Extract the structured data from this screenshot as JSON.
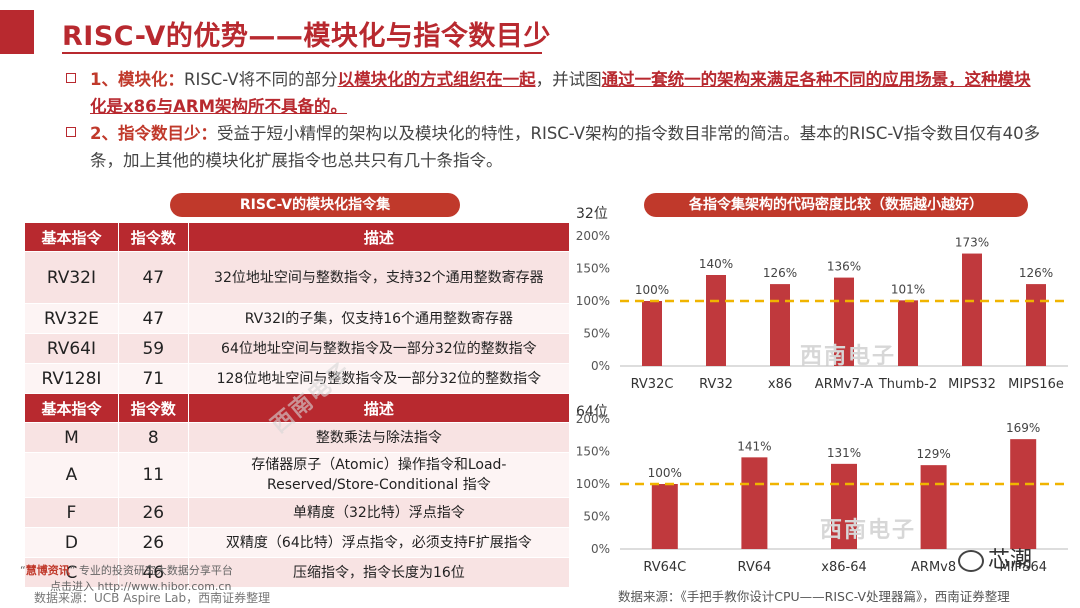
{
  "title": "RISC-V的优势——模块化与指令数目少",
  "bullets": [
    {
      "lead": "1、模块化：",
      "parts": [
        {
          "t": "RISC-V将不同的部分",
          "h": false
        },
        {
          "t": "以模块化的方式组织在一起",
          "h": true
        },
        {
          "t": "，并试图",
          "h": false
        },
        {
          "t": "通过一套统一的架构来满足各种不同的应用场景，这种模块化是x86与ARM架构所不具备的。",
          "h": true
        }
      ]
    },
    {
      "lead": "2、指令数目少：",
      "parts": [
        {
          "t": "受益于短小精悍的架构以及模块化的特性，RISC-V架构的指令数目非常的简洁。基本的RISC-V指令数目仅有40多条，加上其他的模块化扩展指令也总共只有几十条指令。",
          "h": false
        }
      ]
    }
  ],
  "table": {
    "title": "RISC-V的模块化指令集",
    "header1": [
      "基本指令",
      "指令数",
      "描述"
    ],
    "base_rows": [
      {
        "code": "RV32I",
        "count": "47",
        "desc": "32位地址空间与整数指令，支持32个通用整数寄存器"
      },
      {
        "code": "RV32E",
        "count": "47",
        "desc": "RV32I的子集，仅支持16个通用整数寄存器"
      },
      {
        "code": "RV64I",
        "count": "59",
        "desc": "64位地址空间与整数指令及一部分32位的整数指令"
      },
      {
        "code": "RV128I",
        "count": "71",
        "desc": "128位地址空间与整数指令及一部分32位的整数指令"
      }
    ],
    "header2": [
      "基本指令",
      "指令数",
      "描述"
    ],
    "ext_rows": [
      {
        "code": "M",
        "count": "8",
        "desc": "整数乘法与除法指令"
      },
      {
        "code": "A",
        "count": "11",
        "desc": "存储器原子（Atomic）操作指令和Load-Reserved/Store-Conditional 指令"
      },
      {
        "code": "F",
        "count": "26",
        "desc": "单精度（32比特）浮点指令"
      },
      {
        "code": "D",
        "count": "26",
        "desc": "双精度（64比特）浮点指令，必须支持F扩展指令"
      },
      {
        "code": "C",
        "count": "46",
        "desc": "压缩指令，指令长度为16位"
      }
    ]
  },
  "chart_title": "各指令集架构的代码密度比较（数据越小越好）",
  "chart_data": [
    {
      "type": "bar",
      "title": "32位",
      "categories": [
        "RV32C",
        "RV32",
        "x86",
        "ARMv7-A",
        "Thumb-2",
        "MIPS32",
        "MIPS16e"
      ],
      "values": [
        100,
        140,
        126,
        136,
        101,
        173,
        126
      ],
      "value_labels": [
        "100%",
        "140%",
        "126%",
        "136%",
        "101%",
        "173%",
        "126%"
      ],
      "yticks": [
        "0%",
        "50%",
        "100%",
        "150%",
        "200%"
      ],
      "ylim": [
        0,
        200
      ],
      "reference_line": 100,
      "grid": false
    },
    {
      "type": "bar",
      "title": "64位",
      "categories": [
        "RV64C",
        "RV64",
        "x86-64",
        "ARMv8",
        "MIPS64"
      ],
      "values": [
        100,
        141,
        131,
        129,
        169
      ],
      "value_labels": [
        "100%",
        "141%",
        "131%",
        "129%",
        "169%"
      ],
      "yticks": [
        "0%",
        "50%",
        "100%",
        "150%",
        "200%"
      ],
      "ylim": [
        0,
        200
      ],
      "reference_line": 100,
      "grid": false
    }
  ],
  "colors": {
    "accent": "#b8292f",
    "bar": "#c0393d",
    "ref_line": "#f0b400",
    "row_odd": "#f8e3e3",
    "row_even": "#fdf4f4"
  },
  "watermarks": [
    "西南电子",
    "西南电子",
    "西南电子"
  ],
  "source_right": "数据来源：《手把手教你设计CPU——RISC-V处理器篇》，西南证券整理",
  "source_left": "数据来源：UCB Aspire Lab，西南证券整理",
  "footer_brand": "慧博资讯",
  "footer_tagline": "专业的投资研究大数据分享平台",
  "footer_link": "点击进入 http://www.hibor.com.cn",
  "wechat_label": "芯潮"
}
